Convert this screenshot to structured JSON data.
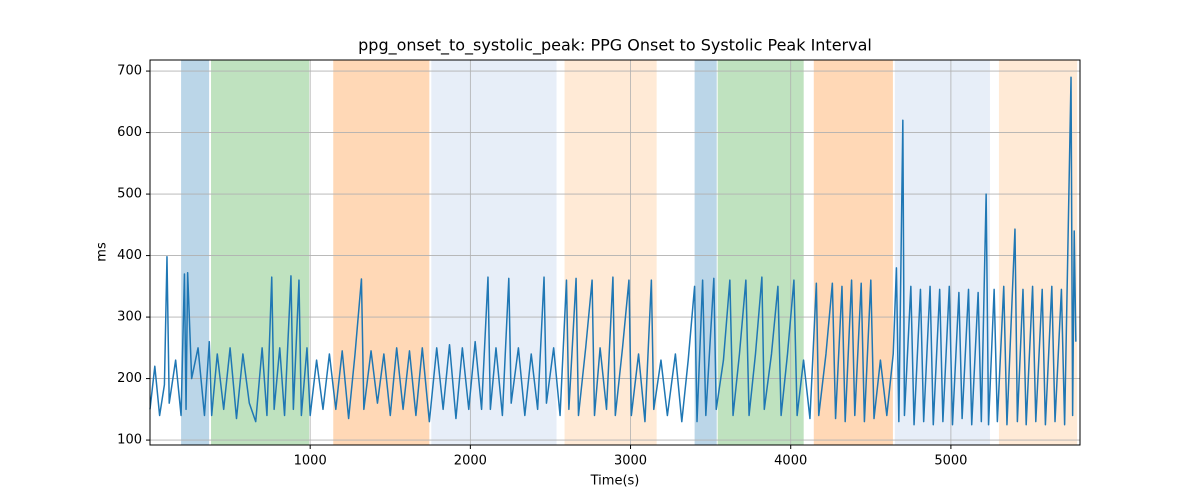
{
  "chart_data": {
    "type": "line",
    "title": "ppg_onset_to_systolic_peak: PPG Onset to Systolic Peak Interval",
    "xlabel": "Time(s)",
    "ylabel": "ms",
    "xlim": [
      0,
      5806
    ],
    "ylim": [
      92,
      718
    ],
    "xticks": [
      1000,
      2000,
      3000,
      4000,
      5000
    ],
    "yticks": [
      100,
      200,
      300,
      400,
      500,
      600,
      700
    ],
    "grid": true,
    "color": "#1f77b4",
    "regions": [
      {
        "start": 194,
        "end": 369,
        "color": "#1f77b4",
        "alpha": 0.3
      },
      {
        "start": 381,
        "end": 994,
        "color": "#2ca02c",
        "alpha": 0.3
      },
      {
        "start": 1144,
        "end": 1744,
        "color": "#ff7f0e",
        "alpha": 0.3
      },
      {
        "start": 1756,
        "end": 2538,
        "color": "#aec7e8",
        "alpha": 0.3
      },
      {
        "start": 2588,
        "end": 3163,
        "color": "#ffbb78",
        "alpha": 0.3
      },
      {
        "start": 3400,
        "end": 3538,
        "color": "#1f77b4",
        "alpha": 0.3
      },
      {
        "start": 3544,
        "end": 4081,
        "color": "#2ca02c",
        "alpha": 0.3
      },
      {
        "start": 4144,
        "end": 4638,
        "color": "#ff7f0e",
        "alpha": 0.3
      },
      {
        "start": 4650,
        "end": 5244,
        "color": "#aec7e8",
        "alpha": 0.3
      },
      {
        "start": 5300,
        "end": 5788,
        "color": "#ffbb78",
        "alpha": 0.3
      }
    ],
    "x": [
      0,
      30,
      60,
      90,
      106,
      120,
      160,
      194,
      215,
      225,
      235,
      260,
      300,
      340,
      370,
      385,
      420,
      460,
      500,
      540,
      580,
      620,
      660,
      700,
      730,
      760,
      775,
      810,
      840,
      880,
      895,
      930,
      945,
      980,
      1000,
      1040,
      1080,
      1120,
      1160,
      1200,
      1240,
      1280,
      1320,
      1335,
      1380,
      1420,
      1460,
      1500,
      1540,
      1580,
      1620,
      1660,
      1700,
      1744,
      1790,
      1830,
      1870,
      1910,
      1950,
      1990,
      2030,
      2070,
      2110,
      2125,
      2160,
      2200,
      2240,
      2255,
      2300,
      2340,
      2380,
      2420,
      2460,
      2475,
      2520,
      2560,
      2600,
      2615,
      2660,
      2675,
      2720,
      2760,
      2775,
      2810,
      2850,
      2890,
      2905,
      2950,
      2990,
      3005,
      3050,
      3090,
      3130,
      3145,
      3190,
      3230,
      3280,
      3320,
      3360,
      3400,
      3415,
      3450,
      3470,
      3520,
      3535,
      3580,
      3620,
      3640,
      3680,
      3720,
      3740,
      3780,
      3820,
      3835,
      3880,
      3920,
      3940,
      3980,
      4020,
      4040,
      4080,
      4120,
      4160,
      4175,
      4220,
      4260,
      4280,
      4320,
      4340,
      4380,
      4400,
      4440,
      4460,
      4500,
      4520,
      4560,
      4600,
      4640,
      4660,
      4675,
      4700,
      4710,
      4750,
      4770,
      4810,
      4830,
      4870,
      4890,
      4930,
      4950,
      4990,
      5010,
      5050,
      5070,
      5110,
      5130,
      5170,
      5190,
      5220,
      5235,
      5270,
      5290,
      5330,
      5350,
      5400,
      5415,
      5450,
      5470,
      5510,
      5530,
      5570,
      5590,
      5630,
      5650,
      5690,
      5710,
      5750,
      5760,
      5770,
      5780
    ],
    "values": [
      150,
      220,
      140,
      190,
      398,
      160,
      230,
      140,
      370,
      150,
      372,
      200,
      250,
      140,
      260,
      140,
      240,
      150,
      250,
      135,
      240,
      160,
      130,
      250,
      140,
      365,
      150,
      250,
      140,
      367,
      150,
      360,
      140,
      250,
      140,
      230,
      150,
      240,
      150,
      245,
      135,
      240,
      362,
      150,
      245,
      160,
      240,
      140,
      250,
      150,
      245,
      140,
      250,
      130,
      250,
      150,
      255,
      135,
      250,
      150,
      260,
      150,
      365,
      150,
      250,
      140,
      363,
      160,
      250,
      140,
      240,
      150,
      365,
      160,
      250,
      140,
      360,
      150,
      363,
      140,
      250,
      360,
      140,
      250,
      150,
      365,
      140,
      250,
      360,
      140,
      240,
      130,
      360,
      150,
      230,
      140,
      240,
      130,
      230,
      350,
      130,
      360,
      140,
      363,
      150,
      230,
      360,
      140,
      240,
      360,
      140,
      240,
      365,
      150,
      240,
      350,
      140,
      240,
      360,
      140,
      230,
      135,
      355,
      140,
      240,
      355,
      135,
      350,
      130,
      360,
      140,
      355,
      130,
      360,
      135,
      230,
      140,
      240,
      380,
      130,
      620,
      140,
      350,
      125,
      345,
      130,
      350,
      125,
      345,
      130,
      350,
      125,
      340,
      135,
      345,
      125,
      340,
      130,
      500,
      125,
      345,
      130,
      350,
      125,
      443,
      130,
      345,
      125,
      350,
      130,
      345,
      125,
      350,
      130,
      345,
      125,
      690,
      140,
      440,
      260
    ]
  }
}
